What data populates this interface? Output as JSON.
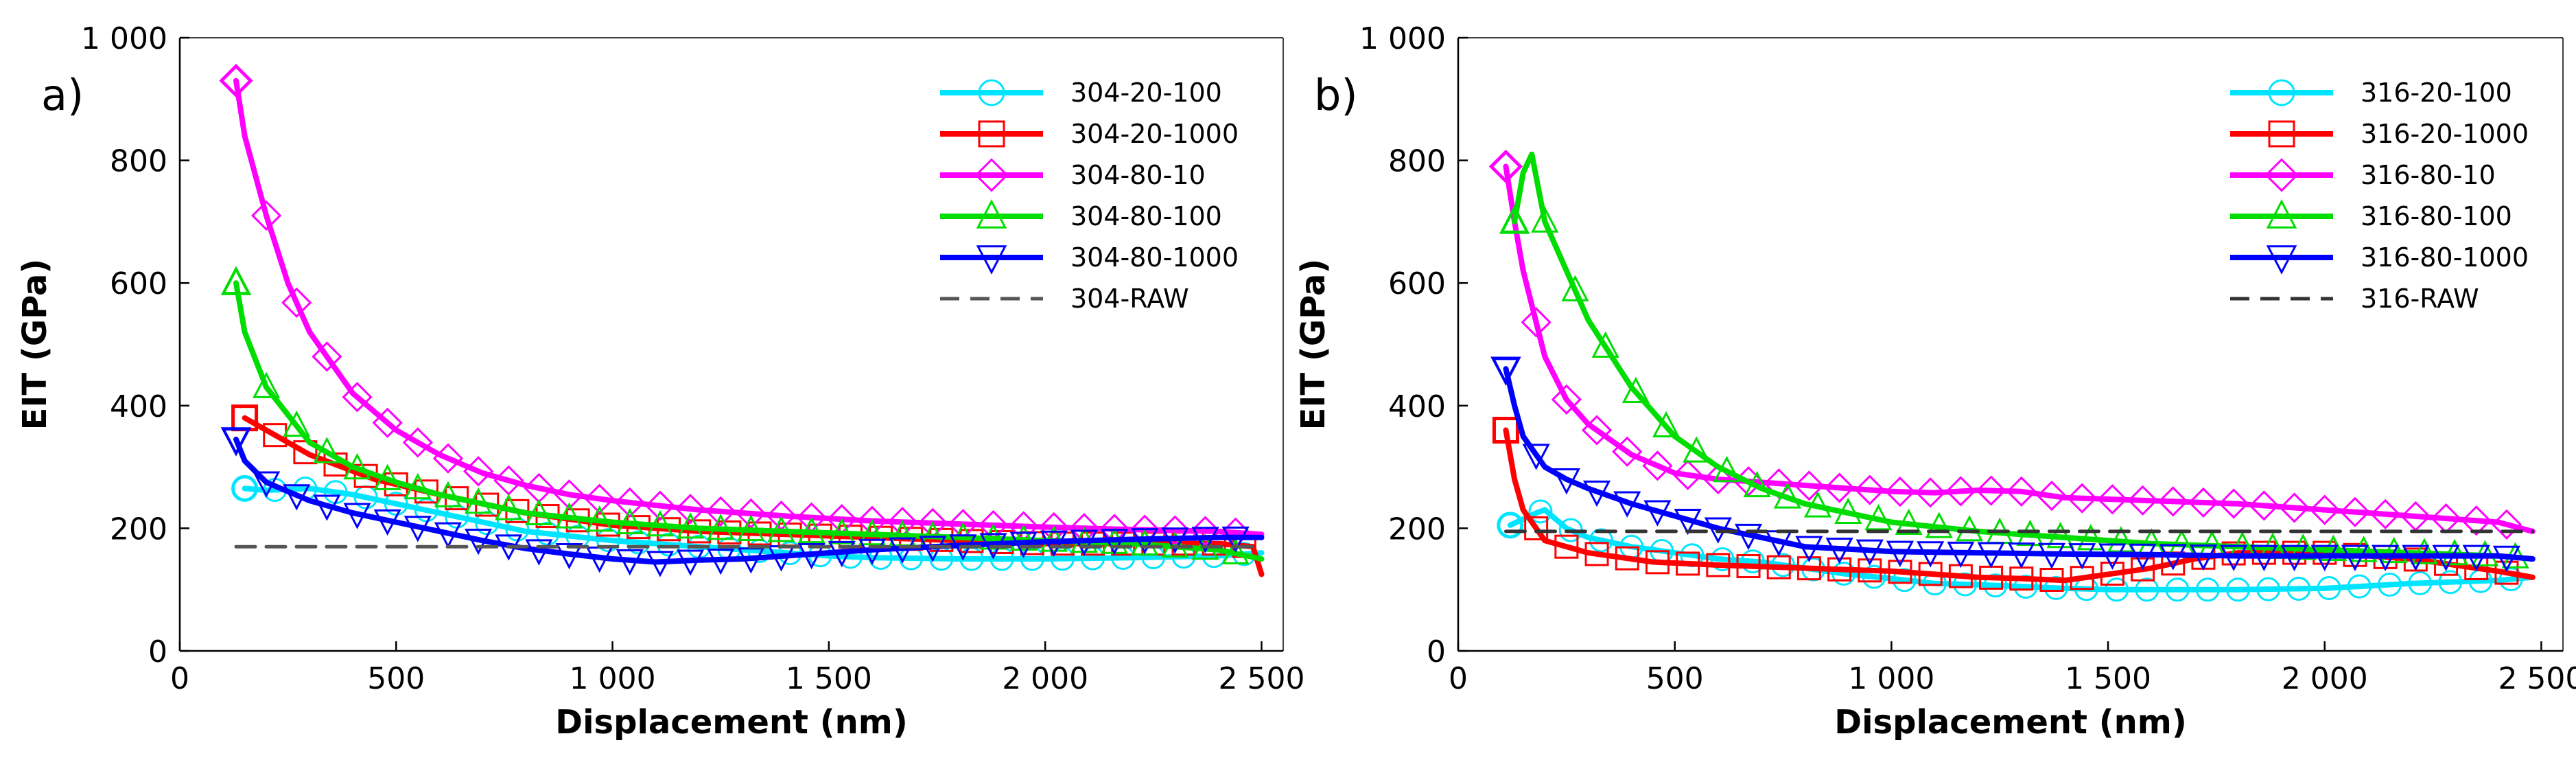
{
  "chart_data": [
    {
      "type": "line",
      "panel_label": "a)",
      "xlabel": "Displacement (nm)",
      "ylabel": "EIT (GPa)",
      "xlim": [
        0,
        2550
      ],
      "ylim": [
        0,
        1000
      ],
      "xticks": [
        0,
        500,
        1000,
        1500,
        2000,
        2500
      ],
      "xtick_labels": [
        "0",
        "500",
        "1 000",
        "1 500",
        "2 000",
        "2 500"
      ],
      "yticks": [
        0,
        200,
        400,
        600,
        800,
        1000
      ],
      "ytick_labels": [
        "0",
        "200",
        "400",
        "600",
        "800",
        "1 000"
      ],
      "legend_position": "top-right",
      "series": [
        {
          "name": "304-20-100",
          "color": "#00e5ff",
          "marker": "circle",
          "x": [
            150,
            200,
            300,
            400,
            500,
            600,
            700,
            800,
            1000,
            1200,
            1400,
            1500,
            1600,
            1800,
            2000,
            2200,
            2400,
            2500
          ],
          "y": [
            265,
            262,
            265,
            255,
            240,
            225,
            210,
            195,
            180,
            170,
            160,
            155,
            152,
            150,
            150,
            152,
            155,
            160
          ]
        },
        {
          "name": "304-20-1000",
          "color": "#ff0000",
          "marker": "square",
          "x": [
            150,
            300,
            450,
            600,
            800,
            1000,
            1200,
            1400,
            1600,
            1800,
            2000,
            2200,
            2400,
            2480,
            2500
          ],
          "y": [
            380,
            320,
            280,
            255,
            225,
            205,
            195,
            190,
            185,
            180,
            175,
            175,
            175,
            170,
            125
          ]
        },
        {
          "name": "304-80-10",
          "color": "#ff00ff",
          "marker": "diamond",
          "x": [
            130,
            150,
            200,
            250,
            300,
            350,
            400,
            500,
            600,
            700,
            800,
            900,
            1000,
            1200,
            1400,
            1600,
            1800,
            2000,
            2200,
            2400,
            2500
          ],
          "y": [
            930,
            840,
            710,
            600,
            520,
            470,
            420,
            360,
            320,
            290,
            270,
            255,
            245,
            230,
            220,
            212,
            207,
            202,
            198,
            195,
            190
          ]
        },
        {
          "name": "304-80-100",
          "color": "#00dd00",
          "marker": "triangle-up",
          "x": [
            130,
            150,
            200,
            300,
            400,
            500,
            600,
            800,
            1000,
            1200,
            1400,
            1600,
            1800,
            2000,
            2200,
            2400,
            2500
          ],
          "y": [
            600,
            520,
            430,
            340,
            300,
            275,
            255,
            225,
            210,
            200,
            195,
            190,
            185,
            180,
            175,
            165,
            150
          ]
        },
        {
          "name": "304-80-1000",
          "color": "#0000ff",
          "marker": "triangle-down",
          "x": [
            130,
            150,
            200,
            300,
            400,
            500,
            600,
            700,
            800,
            900,
            1000,
            1100,
            1200,
            1300,
            1400,
            1500,
            1600,
            1800,
            2000,
            2200,
            2400,
            2500
          ],
          "y": [
            345,
            310,
            275,
            245,
            225,
            210,
            195,
            180,
            167,
            158,
            150,
            145,
            148,
            150,
            155,
            160,
            165,
            172,
            178,
            182,
            185,
            185
          ]
        },
        {
          "name": "304-RAW",
          "color": "#555555",
          "marker": "none",
          "dashed": true,
          "x": [
            130,
            2500
          ],
          "y": [
            170,
            170
          ]
        }
      ]
    },
    {
      "type": "line",
      "panel_label": "b)",
      "xlabel": "Displacement (nm)",
      "ylabel": "EIT (GPa)",
      "xlim": [
        0,
        2550
      ],
      "ylim": [
        0,
        1000
      ],
      "xticks": [
        0,
        500,
        1000,
        1500,
        2000,
        2500
      ],
      "xtick_labels": [
        "0",
        "500",
        "1 000",
        "1 500",
        "2 000",
        "2 500"
      ],
      "yticks": [
        0,
        200,
        400,
        600,
        800,
        1000
      ],
      "ytick_labels": [
        "0",
        "200",
        "400",
        "600",
        "800",
        "1 000"
      ],
      "legend_position": "top-right",
      "series": [
        {
          "name": "316-20-100",
          "color": "#00e5ff",
          "marker": "circle",
          "x": [
            120,
            180,
            200,
            250,
            300,
            400,
            500,
            600,
            700,
            800,
            900,
            1000,
            1100,
            1200,
            1300,
            1400,
            1500,
            1600,
            1800,
            2000,
            2200,
            2400,
            2480
          ],
          "y": [
            205,
            225,
            230,
            200,
            185,
            170,
            160,
            150,
            145,
            135,
            125,
            118,
            110,
            108,
            105,
            102,
            100,
            100,
            100,
            102,
            110,
            115,
            120
          ]
        },
        {
          "name": "316-20-1000",
          "color": "#ff0000",
          "marker": "square",
          "x": [
            110,
            130,
            150,
            200,
            300,
            450,
            600,
            800,
            1000,
            1200,
            1300,
            1400,
            1500,
            1600,
            1700,
            1800,
            2000,
            2200,
            2400,
            2480
          ],
          "y": [
            360,
            280,
            230,
            180,
            160,
            145,
            140,
            135,
            130,
            120,
            118,
            115,
            125,
            135,
            150,
            160,
            160,
            150,
            130,
            120
          ]
        },
        {
          "name": "316-80-10",
          "color": "#ff00ff",
          "marker": "diamond",
          "x": [
            110,
            130,
            150,
            200,
            250,
            300,
            400,
            500,
            600,
            800,
            1000,
            1100,
            1200,
            1300,
            1400,
            1600,
            1800,
            2000,
            2200,
            2400,
            2480
          ],
          "y": [
            790,
            700,
            620,
            480,
            410,
            370,
            320,
            290,
            280,
            270,
            260,
            258,
            262,
            260,
            250,
            245,
            240,
            230,
            220,
            210,
            195
          ]
        },
        {
          "name": "316-80-100",
          "color": "#00dd00",
          "marker": "triangle-up",
          "x": [
            130,
            150,
            170,
            200,
            250,
            300,
            400,
            500,
            600,
            700,
            800,
            1000,
            1200,
            1400,
            1600,
            1800,
            2000,
            2200,
            2400,
            2480
          ],
          "y": [
            700,
            780,
            810,
            700,
            620,
            540,
            430,
            350,
            300,
            265,
            240,
            210,
            195,
            185,
            175,
            170,
            165,
            160,
            155,
            150
          ]
        },
        {
          "name": "316-80-1000",
          "color": "#0000ff",
          "marker": "triangle-down",
          "x": [
            110,
            130,
            150,
            200,
            250,
            300,
            400,
            500,
            600,
            700,
            800,
            1000,
            1200,
            1400,
            1600,
            1800,
            2000,
            2200,
            2400,
            2480
          ],
          "y": [
            460,
            400,
            350,
            300,
            280,
            265,
            240,
            220,
            200,
            185,
            170,
            162,
            160,
            158,
            157,
            155,
            155,
            155,
            155,
            150
          ]
        },
        {
          "name": "316-RAW",
          "color": "#333333",
          "marker": "none",
          "dashed": true,
          "x": [
            110,
            2480
          ],
          "y": [
            195,
            195
          ]
        }
      ]
    }
  ]
}
